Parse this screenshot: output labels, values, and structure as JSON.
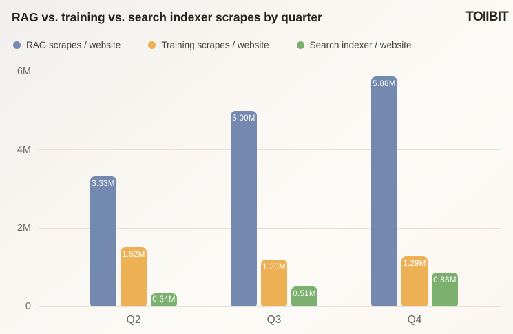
{
  "header": {
    "title": "RAG vs. training vs. search indexer scrapes by quarter",
    "logo": "TOIIBIT"
  },
  "chart_data": {
    "type": "bar",
    "title": "RAG vs. training vs. search indexer scrapes by quarter",
    "categories": [
      "Q2",
      "Q3",
      "Q4"
    ],
    "series": [
      {
        "name": "RAG scrapes / website",
        "color": "#7489b0",
        "values_millions": [
          3.33,
          5.0,
          5.88
        ],
        "labels": [
          "3.33M",
          "5.00M",
          "5.88M"
        ]
      },
      {
        "name": "Training scrapes / website",
        "color": "#edb055",
        "values_millions": [
          1.52,
          1.2,
          1.29
        ],
        "labels": [
          "1.52M",
          "1.20M",
          "1.29M"
        ]
      },
      {
        "name": "Search indexer / website",
        "color": "#7bb06f",
        "values_millions": [
          0.34,
          0.51,
          0.86
        ],
        "labels": [
          "0.34M",
          "0.51M",
          "0.86M"
        ]
      }
    ],
    "ylim_millions": [
      0,
      6
    ],
    "yticks": [
      {
        "value_millions": 0,
        "label": "0"
      },
      {
        "value_millions": 2,
        "label": "2M"
      },
      {
        "value_millions": 4,
        "label": "4M"
      },
      {
        "value_millions": 6,
        "label": "6M"
      }
    ],
    "grid": true,
    "legend_position": "top",
    "value_label_color": "#ffffff",
    "background": "#fbf8f4"
  }
}
